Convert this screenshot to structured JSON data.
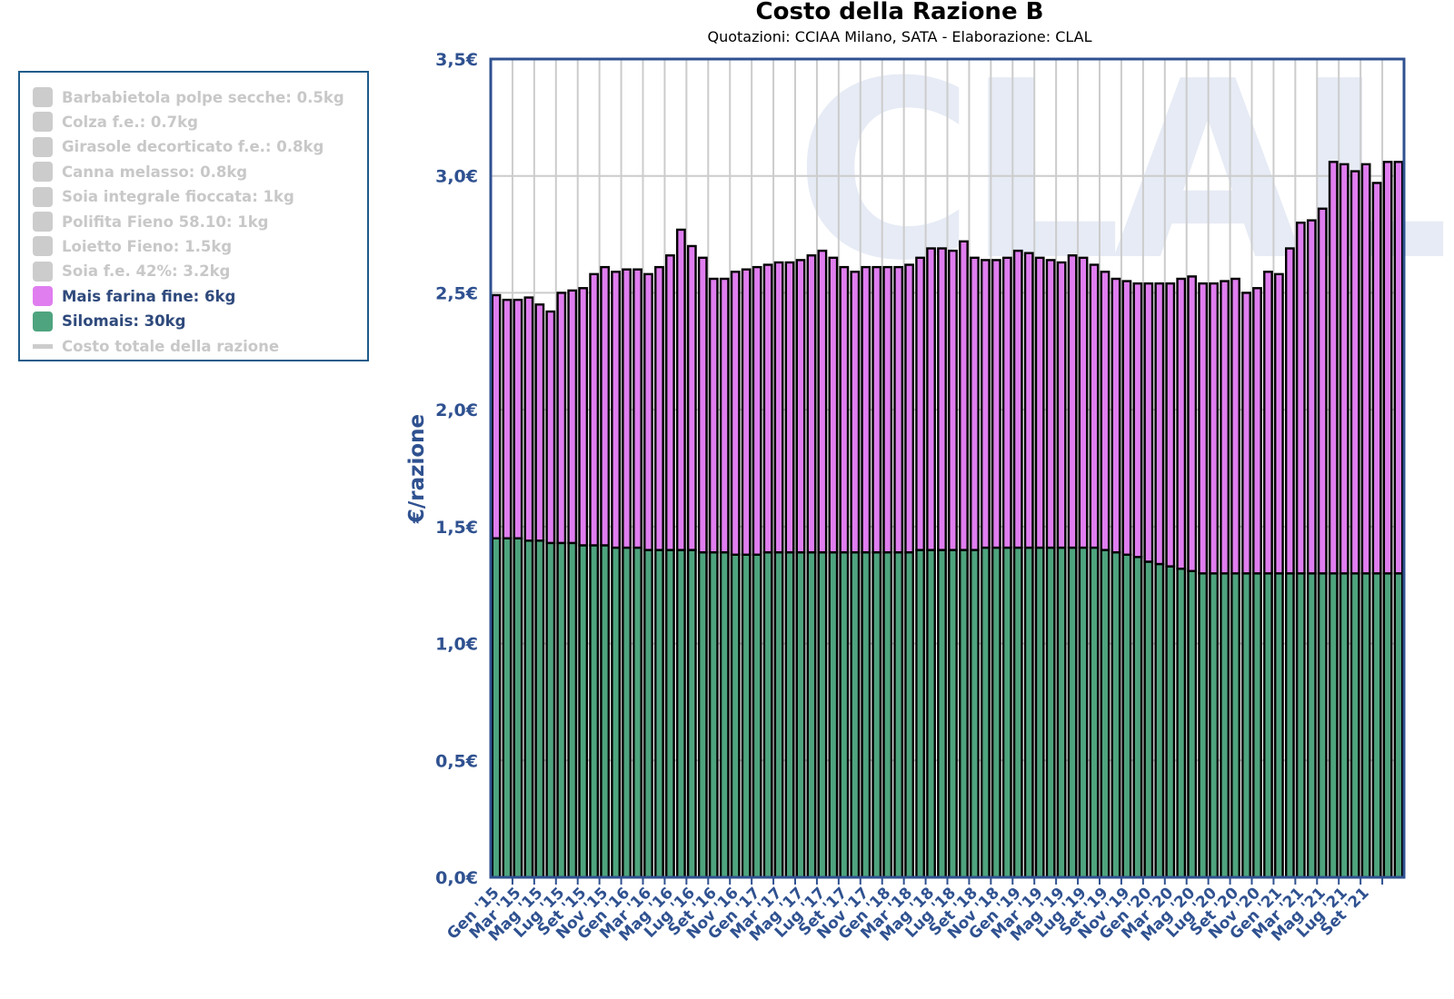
{
  "chart_data": {
    "type": "bar",
    "stacked": true,
    "title": "Costo della Razione B",
    "subtitle": "Quotazioni: CCIAA Milano, SATA - Elaborazione: CLAL",
    "xlabel": "",
    "ylabel": "€/razione",
    "ylim": [
      0,
      3.5
    ],
    "yticks": [
      "0,0€",
      "0,5€",
      "1,0€",
      "1,5€",
      "2,0€",
      "2,5€",
      "3,0€",
      "3,5€"
    ],
    "ytick_values": [
      0,
      0.5,
      1.0,
      1.5,
      2.0,
      2.5,
      3.0,
      3.5
    ],
    "grid": true,
    "legend_position": "left",
    "watermark": "CLAL",
    "categories": [
      "Gen '15",
      "Feb '15",
      "Mar '15",
      "Apr '15",
      "Mag '15",
      "Giu '15",
      "Lug '15",
      "Ago '15",
      "Set '15",
      "Ott '15",
      "Nov '15",
      "Dic '15",
      "Gen '16",
      "Feb '16",
      "Mar '16",
      "Apr '16",
      "Mag '16",
      "Giu '16",
      "Lug '16",
      "Ago '16",
      "Set '16",
      "Ott '16",
      "Nov '16",
      "Dic '16",
      "Gen '17",
      "Feb '17",
      "Mar '17",
      "Apr '17",
      "Mag '17",
      "Giu '17",
      "Lug '17",
      "Ago '17",
      "Set '17",
      "Ott '17",
      "Nov '17",
      "Dic '17",
      "Gen '18",
      "Feb '18",
      "Mar '18",
      "Apr '18",
      "Mag '18",
      "Giu '18",
      "Lug '18",
      "Ago '18",
      "Set '18",
      "Ott '18",
      "Nov '18",
      "Dic '18",
      "Gen '19",
      "Feb '19",
      "Mar '19",
      "Apr '19",
      "Mag '19",
      "Giu '19",
      "Lug '19",
      "Ago '19",
      "Set '19",
      "Ott '19",
      "Nov '19",
      "Dic '19",
      "Gen '20",
      "Feb '20",
      "Mar '20",
      "Apr '20",
      "Mag '20",
      "Giu '20",
      "Lug '20",
      "Ago '20",
      "Set '20",
      "Ott '20",
      "Nov '20",
      "Dic '20",
      "Gen '21",
      "Feb '21",
      "Mar '21",
      "Apr '21",
      "Mag '21",
      "Giu '21",
      "Lug '21",
      "Ago '21",
      "Set '21",
      "Ott '21",
      "Nov '21",
      "Dic '21"
    ],
    "tick_labels": [
      "Gen '15",
      "Mar '15",
      "Mag '15",
      "Lug '15",
      "Set '15",
      "Nov '15",
      "Gen '16",
      "Mar '16",
      "Mag '16",
      "Lug '16",
      "Set '16",
      "Nov '16",
      "Gen '17",
      "Mar '17",
      "Mag '17",
      "Lug '17",
      "Set '17",
      "Nov '17",
      "Gen '18",
      "Mar '18",
      "Mag '18",
      "Lug '18",
      "Set '18",
      "Nov '18",
      "Gen '19",
      "Mar '19",
      "Mag '19",
      "Lug '19",
      "Set '19",
      "Nov '19",
      "Gen '20",
      "Mar '20",
      "Mag '20",
      "Lug '20",
      "Set '20",
      "Nov '20",
      "Gen '21",
      "Mar '21",
      "Mag '21",
      "Lug '21",
      "Set '21"
    ],
    "series": [
      {
        "name": "Silomais: 30kg",
        "color": "#4ea47e",
        "values": [
          1.45,
          1.45,
          1.45,
          1.44,
          1.44,
          1.43,
          1.43,
          1.43,
          1.42,
          1.42,
          1.42,
          1.41,
          1.41,
          1.41,
          1.4,
          1.4,
          1.4,
          1.4,
          1.4,
          1.39,
          1.39,
          1.39,
          1.38,
          1.38,
          1.38,
          1.39,
          1.39,
          1.39,
          1.39,
          1.39,
          1.39,
          1.39,
          1.39,
          1.39,
          1.39,
          1.39,
          1.39,
          1.39,
          1.39,
          1.4,
          1.4,
          1.4,
          1.4,
          1.4,
          1.4,
          1.41,
          1.41,
          1.41,
          1.41,
          1.41,
          1.41,
          1.41,
          1.41,
          1.41,
          1.41,
          1.41,
          1.4,
          1.39,
          1.38,
          1.37,
          1.35,
          1.34,
          1.33,
          1.32,
          1.31,
          1.3,
          1.3,
          1.3,
          1.3,
          1.3,
          1.3,
          1.3,
          1.3,
          1.3,
          1.3,
          1.3,
          1.3,
          1.3,
          1.3,
          1.3,
          1.3,
          1.3,
          1.3,
          1.3
        ]
      },
      {
        "name": "Mais farina fine: 6kg",
        "color": "#e07ef0",
        "values": [
          1.04,
          1.02,
          1.02,
          1.04,
          1.01,
          0.99,
          1.07,
          1.08,
          1.1,
          1.16,
          1.19,
          1.18,
          1.19,
          1.19,
          1.18,
          1.21,
          1.26,
          1.37,
          1.3,
          1.26,
          1.17,
          1.17,
          1.21,
          1.22,
          1.23,
          1.23,
          1.24,
          1.24,
          1.25,
          1.27,
          1.29,
          1.26,
          1.22,
          1.2,
          1.22,
          1.22,
          1.22,
          1.22,
          1.23,
          1.25,
          1.29,
          1.29,
          1.28,
          1.32,
          1.25,
          1.23,
          1.23,
          1.24,
          1.27,
          1.26,
          1.24,
          1.23,
          1.22,
          1.25,
          1.24,
          1.21,
          1.19,
          1.17,
          1.17,
          1.17,
          1.19,
          1.2,
          1.21,
          1.24,
          1.26,
          1.24,
          1.24,
          1.25,
          1.26,
          1.2,
          1.22,
          1.29,
          1.28,
          1.39,
          1.5,
          1.51,
          1.56,
          1.76,
          1.75,
          1.72,
          1.75,
          1.67,
          1.76,
          1.76
        ]
      }
    ],
    "legend": [
      {
        "label": "Barbabietola polpe secche: 0.5kg",
        "color": "#cccccc",
        "active": false,
        "kind": "swatch"
      },
      {
        "label": "Colza f.e.: 0.7kg",
        "color": "#cccccc",
        "active": false,
        "kind": "swatch"
      },
      {
        "label": "Girasole decorticato f.e.: 0.8kg",
        "color": "#cccccc",
        "active": false,
        "kind": "swatch"
      },
      {
        "label": "Canna melasso: 0.8kg",
        "color": "#cccccc",
        "active": false,
        "kind": "swatch"
      },
      {
        "label": "Soia integrale fioccata: 1kg",
        "color": "#cccccc",
        "active": false,
        "kind": "swatch"
      },
      {
        "label": "Polifita Fieno 58.10: 1kg",
        "color": "#cccccc",
        "active": false,
        "kind": "swatch"
      },
      {
        "label": "Loietto Fieno: 1.5kg",
        "color": "#cccccc",
        "active": false,
        "kind": "swatch"
      },
      {
        "label": "Soia f.e. 42%: 3.2kg",
        "color": "#cccccc",
        "active": false,
        "kind": "swatch"
      },
      {
        "label": "Mais farina fine: 6kg",
        "color": "#e07ef0",
        "active": true,
        "kind": "swatch"
      },
      {
        "label": "Silomais: 30kg",
        "color": "#4ea47e",
        "active": true,
        "kind": "swatch"
      },
      {
        "label": "Costo totale della razione",
        "color": "#cccccc",
        "active": false,
        "kind": "line"
      }
    ]
  },
  "colors": {
    "axis": "#2f5190",
    "active_text": "#2f4a7c",
    "inactive_text": "#c8c8c8",
    "grid": "#cccccc",
    "watermark": "#e6ebf5",
    "legend_border": "#1f5c8b"
  }
}
